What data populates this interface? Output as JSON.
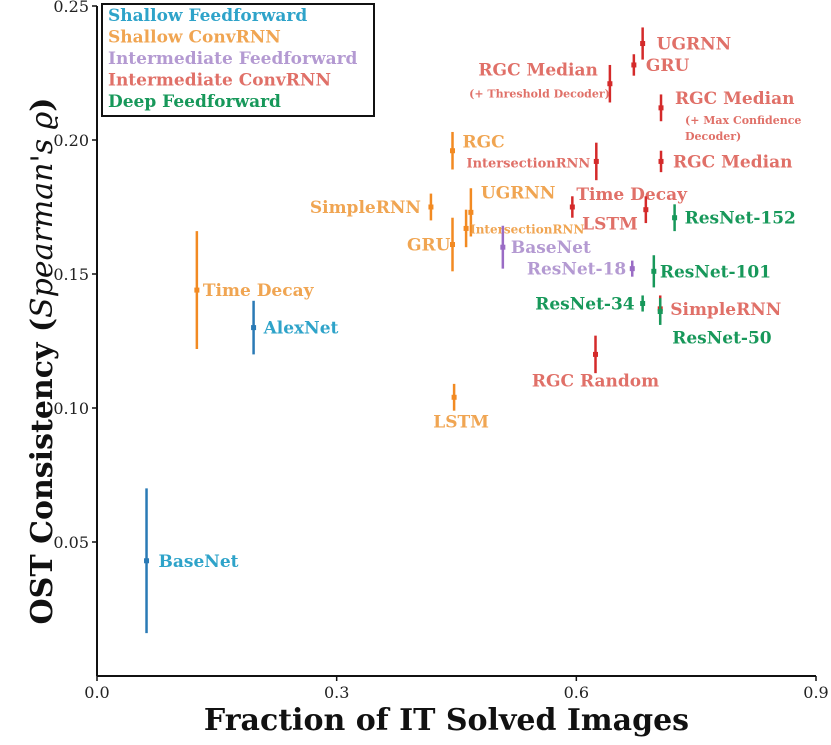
{
  "chart_data": {
    "type": "scatter",
    "xlabel": "Fraction of IT Solved Images",
    "ylabel": "OST Consistency",
    "ylabel_italic": "Spearman's ϱ",
    "xlim": [
      0.0,
      0.9
    ],
    "ylim": [
      0.0,
      0.25
    ],
    "xticks": [
      0.0,
      0.3,
      0.6,
      0.9
    ],
    "xtick_labels": [
      "0.0",
      "0.3",
      "0.6",
      "0.9"
    ],
    "yticks": [
      0.05,
      0.1,
      0.15,
      0.2,
      0.25
    ],
    "ytick_labels": [
      "0.05",
      "0.10",
      "0.15",
      "0.20",
      "0.25"
    ],
    "grid": false,
    "legend_position": "top-left",
    "series": [
      {
        "name": "Shallow Feedforward",
        "color": "#2a7ab5",
        "label_color": "#2ea3c9",
        "points": [
          {
            "label": "AlexNet",
            "x": 0.196,
            "y": 0.13,
            "err": 0.01
          },
          {
            "label": "BaseNet",
            "x": 0.062,
            "y": 0.043,
            "err": 0.027
          }
        ]
      },
      {
        "name": "Shallow ConvRNN",
        "color": "#f28a22",
        "label_color": "#f0a552",
        "points": [
          {
            "label": "Time Decay",
            "x": 0.125,
            "y": 0.144,
            "err": 0.022
          },
          {
            "label": "RGC",
            "x": 0.445,
            "y": 0.196,
            "err": 0.007
          },
          {
            "label": "UGRNN",
            "x": 0.468,
            "y": 0.173,
            "err": 0.009
          },
          {
            "label": "SimpleRNN",
            "x": 0.418,
            "y": 0.175,
            "err": 0.005
          },
          {
            "label": "IntersectionRNN",
            "x": 0.462,
            "y": 0.167,
            "err": 0.007
          },
          {
            "label": "GRU",
            "x": 0.445,
            "y": 0.161,
            "err": 0.01
          },
          {
            "label": "LSTM",
            "x": 0.447,
            "y": 0.104,
            "err": 0.005
          }
        ]
      },
      {
        "name": "Intermediate Feedforward",
        "color": "#9a6cc5",
        "label_color": "#b49ad2",
        "points": [
          {
            "label": "BaseNet",
            "x": 0.508,
            "y": 0.16,
            "err": 0.008
          },
          {
            "label": "ResNet-18",
            "x": 0.67,
            "y": 0.152,
            "err": 0.003
          }
        ]
      },
      {
        "name": "Intermediate ConvRNN",
        "color": "#d42a2a",
        "label_color": "#e07068",
        "points": [
          {
            "label": "UGRNN",
            "x": 0.683,
            "y": 0.236,
            "err": 0.006
          },
          {
            "label": "GRU",
            "x": 0.672,
            "y": 0.228,
            "err": 0.004
          },
          {
            "label": "RGC Median",
            "sublabel": "(+ Threshold Decoder)",
            "x": 0.642,
            "y": 0.221,
            "err": 0.007
          },
          {
            "label": "RGC Median",
            "sublabel": "(+ Max Confidence Decoder)",
            "x": 0.706,
            "y": 0.212,
            "err": 0.005
          },
          {
            "label": "RGC Median",
            "x": 0.706,
            "y": 0.192,
            "err": 0.004
          },
          {
            "label": "IntersectionRNN",
            "x": 0.625,
            "y": 0.192,
            "err": 0.007
          },
          {
            "label": "Time Decay",
            "x": 0.595,
            "y": 0.175,
            "err": 0.004
          },
          {
            "label": "LSTM",
            "x": 0.687,
            "y": 0.174,
            "err": 0.005
          },
          {
            "label": "SimpleRNN",
            "x": 0.705,
            "y": 0.137,
            "err": 0.005
          },
          {
            "label": "RGC Random",
            "x": 0.624,
            "y": 0.12,
            "err": 0.007
          }
        ]
      },
      {
        "name": "Deep Feedforward",
        "color": "#17985a",
        "label_color": "#17985a",
        "points": [
          {
            "label": "ResNet-152",
            "x": 0.723,
            "y": 0.171,
            "err": 0.005
          },
          {
            "label": "ResNet-101",
            "x": 0.697,
            "y": 0.151,
            "err": 0.006
          },
          {
            "label": "ResNet-34",
            "x": 0.683,
            "y": 0.139,
            "err": 0.003
          },
          {
            "label": "ResNet-50",
            "x": 0.705,
            "y": 0.136,
            "err": 0.005
          }
        ]
      }
    ]
  }
}
